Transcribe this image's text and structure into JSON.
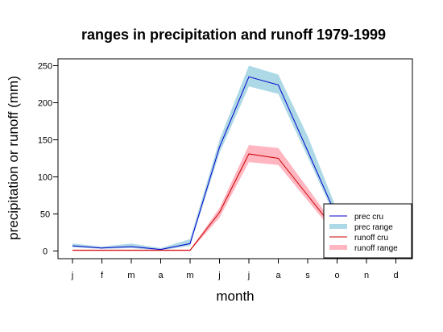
{
  "chart_data": {
    "type": "line",
    "title": "ranges in precipitation and runoff 1979-1999",
    "xlabel": "month",
    "ylabel": "precipitation or runoff (mm)",
    "categories": [
      "j",
      "f",
      "m",
      "a",
      "m",
      "j",
      "j",
      "a",
      "s",
      "o",
      "n",
      "d"
    ],
    "ylim": [
      0,
      260
    ],
    "yticks": [
      0,
      50,
      100,
      150,
      200,
      250
    ],
    "grid": false,
    "legend_position": "bottom-right",
    "series": [
      {
        "name": "prec cru",
        "type": "line",
        "color": "#0000cc",
        "values": [
          7,
          4,
          6,
          2,
          10,
          140,
          235,
          224,
          135,
          45,
          20,
          8
        ]
      },
      {
        "name": "prec range",
        "type": "band",
        "color": "#add8e6",
        "lower": [
          5,
          3,
          4,
          1,
          7,
          132,
          222,
          212,
          127,
          40,
          17,
          6
        ],
        "upper": [
          10,
          6,
          10,
          4,
          16,
          150,
          250,
          238,
          155,
          55,
          24,
          11
        ]
      },
      {
        "name": "runoff cru",
        "type": "line",
        "color": "#cc0000",
        "values": [
          1,
          1,
          1,
          1,
          1,
          52,
          131,
          125,
          75,
          25,
          12,
          4
        ]
      },
      {
        "name": "runoff range",
        "type": "band",
        "color": "#ffb6c1",
        "lower": [
          0,
          0,
          0,
          0,
          0,
          45,
          120,
          116,
          68,
          20,
          9,
          2
        ],
        "upper": [
          2,
          2,
          2,
          2,
          2,
          58,
          143,
          139,
          85,
          30,
          15,
          6
        ]
      }
    ]
  }
}
